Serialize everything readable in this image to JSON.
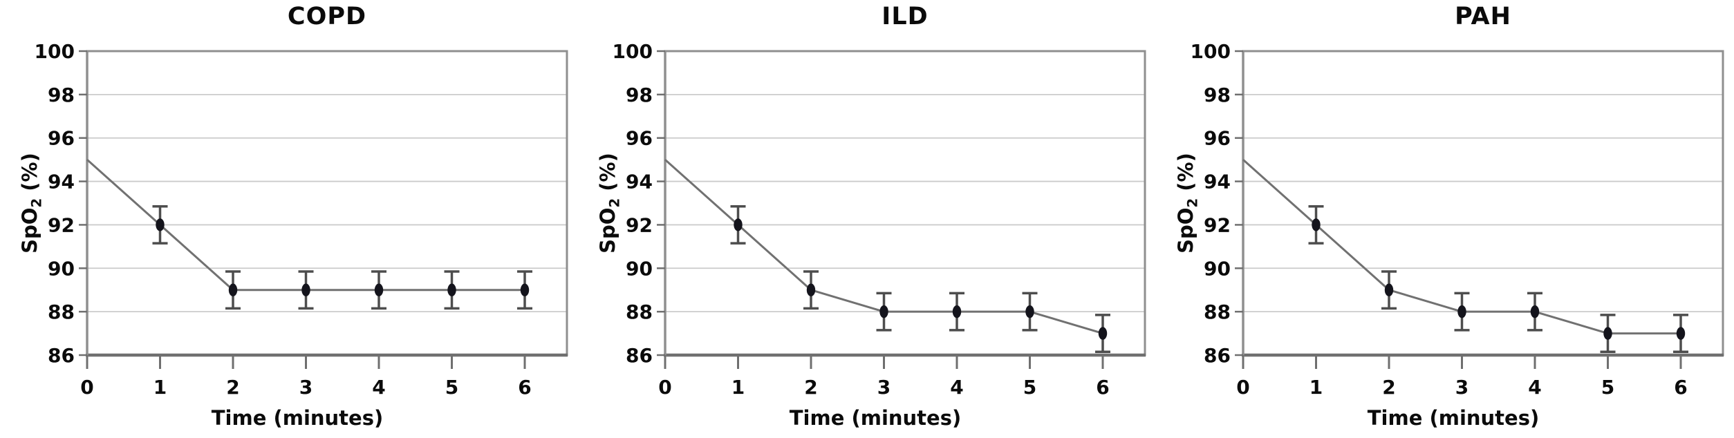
{
  "style": {
    "background": "#ffffff",
    "grid_color": "#cbcbcb",
    "border_color": "#8f8f8f",
    "axis_color": "#6f6f6f",
    "tick_color": "#6f6f6f",
    "text_color": "#0b0b0b",
    "line_color": "#717171",
    "marker_color": "#14141c",
    "error_color": "#4d4d4d"
  },
  "labels": {
    "ylabel_base": "SpO",
    "ylabel_sub": "2",
    "ylabel_unit": " (%)"
  },
  "chart_data": [
    {
      "type": "line",
      "title": "COPD",
      "xlabel": "Time (minutes)",
      "ylabel": "SpO2 (%)",
      "x": [
        0,
        1,
        2,
        3,
        4,
        5,
        6
      ],
      "values": [
        95,
        92,
        89,
        89,
        89,
        89,
        89
      ],
      "errors": [
        null,
        0.85,
        0.85,
        0.85,
        0.85,
        0.85,
        0.85
      ],
      "point_markers": [
        false,
        true,
        true,
        true,
        true,
        true,
        true
      ],
      "ylim": [
        86,
        100
      ],
      "yticks": [
        86,
        88,
        90,
        92,
        94,
        96,
        98,
        100
      ],
      "xticks": [
        0,
        1,
        2,
        3,
        4,
        5,
        6
      ],
      "grid": "horizontal",
      "legend": "none",
      "marker": "filled-ellipse"
    },
    {
      "type": "line",
      "title": "ILD",
      "xlabel": "Time (minutes)",
      "ylabel": "SpO2 (%)",
      "x": [
        0,
        1,
        2,
        3,
        4,
        5,
        6
      ],
      "values": [
        95,
        92,
        89,
        88,
        88,
        88,
        87
      ],
      "errors": [
        null,
        0.85,
        0.85,
        0.85,
        0.85,
        0.85,
        0.85
      ],
      "point_markers": [
        false,
        true,
        true,
        true,
        true,
        true,
        true
      ],
      "ylim": [
        86,
        100
      ],
      "yticks": [
        86,
        88,
        90,
        92,
        94,
        96,
        98,
        100
      ],
      "xticks": [
        0,
        1,
        2,
        3,
        4,
        5,
        6
      ],
      "grid": "horizontal",
      "legend": "none",
      "marker": "filled-ellipse"
    },
    {
      "type": "line",
      "title": "PAH",
      "xlabel": "Time (minutes)",
      "ylabel": "SpO2 (%)",
      "x": [
        0,
        1,
        2,
        3,
        4,
        5,
        6
      ],
      "values": [
        95,
        92,
        89,
        88,
        88,
        87,
        87
      ],
      "errors": [
        null,
        0.85,
        0.85,
        0.85,
        0.85,
        0.85,
        0.85
      ],
      "point_markers": [
        false,
        true,
        true,
        true,
        true,
        true,
        true
      ],
      "ylim": [
        86,
        100
      ],
      "yticks": [
        86,
        88,
        90,
        92,
        94,
        96,
        98,
        100
      ],
      "xticks": [
        0,
        1,
        2,
        3,
        4,
        5,
        6
      ],
      "grid": "horizontal",
      "legend": "none",
      "marker": "filled-ellipse"
    }
  ]
}
